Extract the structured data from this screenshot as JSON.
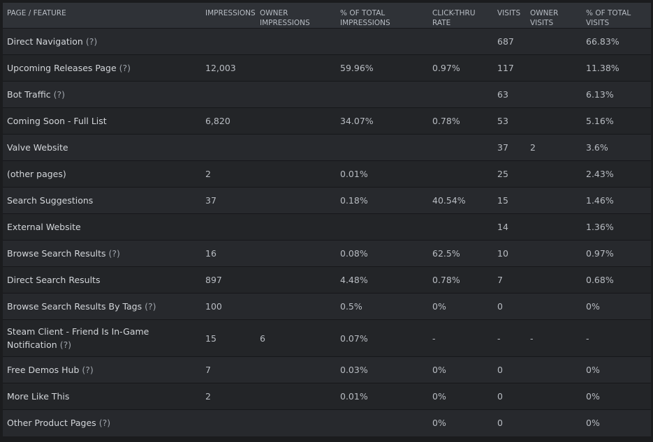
{
  "headers": {
    "page": "PAGE / FEATURE",
    "impressions": "IMPRESSIONS",
    "owner_impressions": "OWNER IMPRESSIONS",
    "pct_impressions": "% OF TOTAL IMPRESSIONS",
    "ctr": "CLICK-THRU RATE",
    "visits": "VISITS",
    "owner_visits": "OWNER VISITS",
    "pct_visits": "% OF TOTAL VISITS"
  },
  "help_label": "(?)",
  "rows": [
    {
      "page": "Direct Navigation",
      "help": true,
      "impressions": "",
      "owner_impressions": "",
      "pct_impressions": "",
      "ctr": "",
      "visits": "687",
      "owner_visits": "",
      "pct_visits": "66.83%"
    },
    {
      "page": "Upcoming Releases Page",
      "help": true,
      "impressions": "12,003",
      "owner_impressions": "",
      "pct_impressions": "59.96%",
      "ctr": "0.97%",
      "visits": "117",
      "owner_visits": "",
      "pct_visits": "11.38%"
    },
    {
      "page": "Bot Traffic",
      "help": true,
      "impressions": "",
      "owner_impressions": "",
      "pct_impressions": "",
      "ctr": "",
      "visits": "63",
      "owner_visits": "",
      "pct_visits": "6.13%"
    },
    {
      "page": "Coming Soon - Full List",
      "help": false,
      "impressions": "6,820",
      "owner_impressions": "",
      "pct_impressions": "34.07%",
      "ctr": "0.78%",
      "visits": "53",
      "owner_visits": "",
      "pct_visits": "5.16%"
    },
    {
      "page": "Valve Website",
      "help": false,
      "impressions": "",
      "owner_impressions": "",
      "pct_impressions": "",
      "ctr": "",
      "visits": "37",
      "owner_visits": "2",
      "pct_visits": "3.6%"
    },
    {
      "page": "(other pages)",
      "help": false,
      "impressions": "2",
      "owner_impressions": "",
      "pct_impressions": "0.01%",
      "ctr": "",
      "visits": "25",
      "owner_visits": "",
      "pct_visits": "2.43%"
    },
    {
      "page": "Search Suggestions",
      "help": false,
      "impressions": "37",
      "owner_impressions": "",
      "pct_impressions": "0.18%",
      "ctr": "40.54%",
      "visits": "15",
      "owner_visits": "",
      "pct_visits": "1.46%"
    },
    {
      "page": "External Website",
      "help": false,
      "impressions": "",
      "owner_impressions": "",
      "pct_impressions": "",
      "ctr": "",
      "visits": "14",
      "owner_visits": "",
      "pct_visits": "1.36%"
    },
    {
      "page": "Browse Search Results",
      "help": true,
      "impressions": "16",
      "owner_impressions": "",
      "pct_impressions": "0.08%",
      "ctr": "62.5%",
      "visits": "10",
      "owner_visits": "",
      "pct_visits": "0.97%"
    },
    {
      "page": "Direct Search Results",
      "help": false,
      "impressions": "897",
      "owner_impressions": "",
      "pct_impressions": "4.48%",
      "ctr": "0.78%",
      "visits": "7",
      "owner_visits": "",
      "pct_visits": "0.68%"
    },
    {
      "page": "Browse Search Results By Tags",
      "help": true,
      "impressions": "100",
      "owner_impressions": "",
      "pct_impressions": "0.5%",
      "ctr": "0%",
      "visits": "0",
      "owner_visits": "",
      "pct_visits": "0%"
    },
    {
      "page": "Steam Client - Friend Is In-Game Notification",
      "help": true,
      "tall": true,
      "impressions": "15",
      "owner_impressions": "6",
      "pct_impressions": "0.07%",
      "ctr": "-",
      "visits": "-",
      "owner_visits": "-",
      "pct_visits": "-"
    },
    {
      "page": "Free Demos Hub",
      "help": true,
      "impressions": "7",
      "owner_impressions": "",
      "pct_impressions": "0.03%",
      "ctr": "0%",
      "visits": "0",
      "owner_visits": "",
      "pct_visits": "0%"
    },
    {
      "page": "More Like This",
      "help": false,
      "impressions": "2",
      "owner_impressions": "",
      "pct_impressions": "0.01%",
      "ctr": "0%",
      "visits": "0",
      "owner_visits": "",
      "pct_visits": "0%"
    },
    {
      "page": "Other Product Pages",
      "help": true,
      "impressions": "",
      "owner_impressions": "",
      "pct_impressions": "",
      "ctr": "0%",
      "visits": "0",
      "owner_visits": "",
      "pct_visits": "0%"
    }
  ]
}
